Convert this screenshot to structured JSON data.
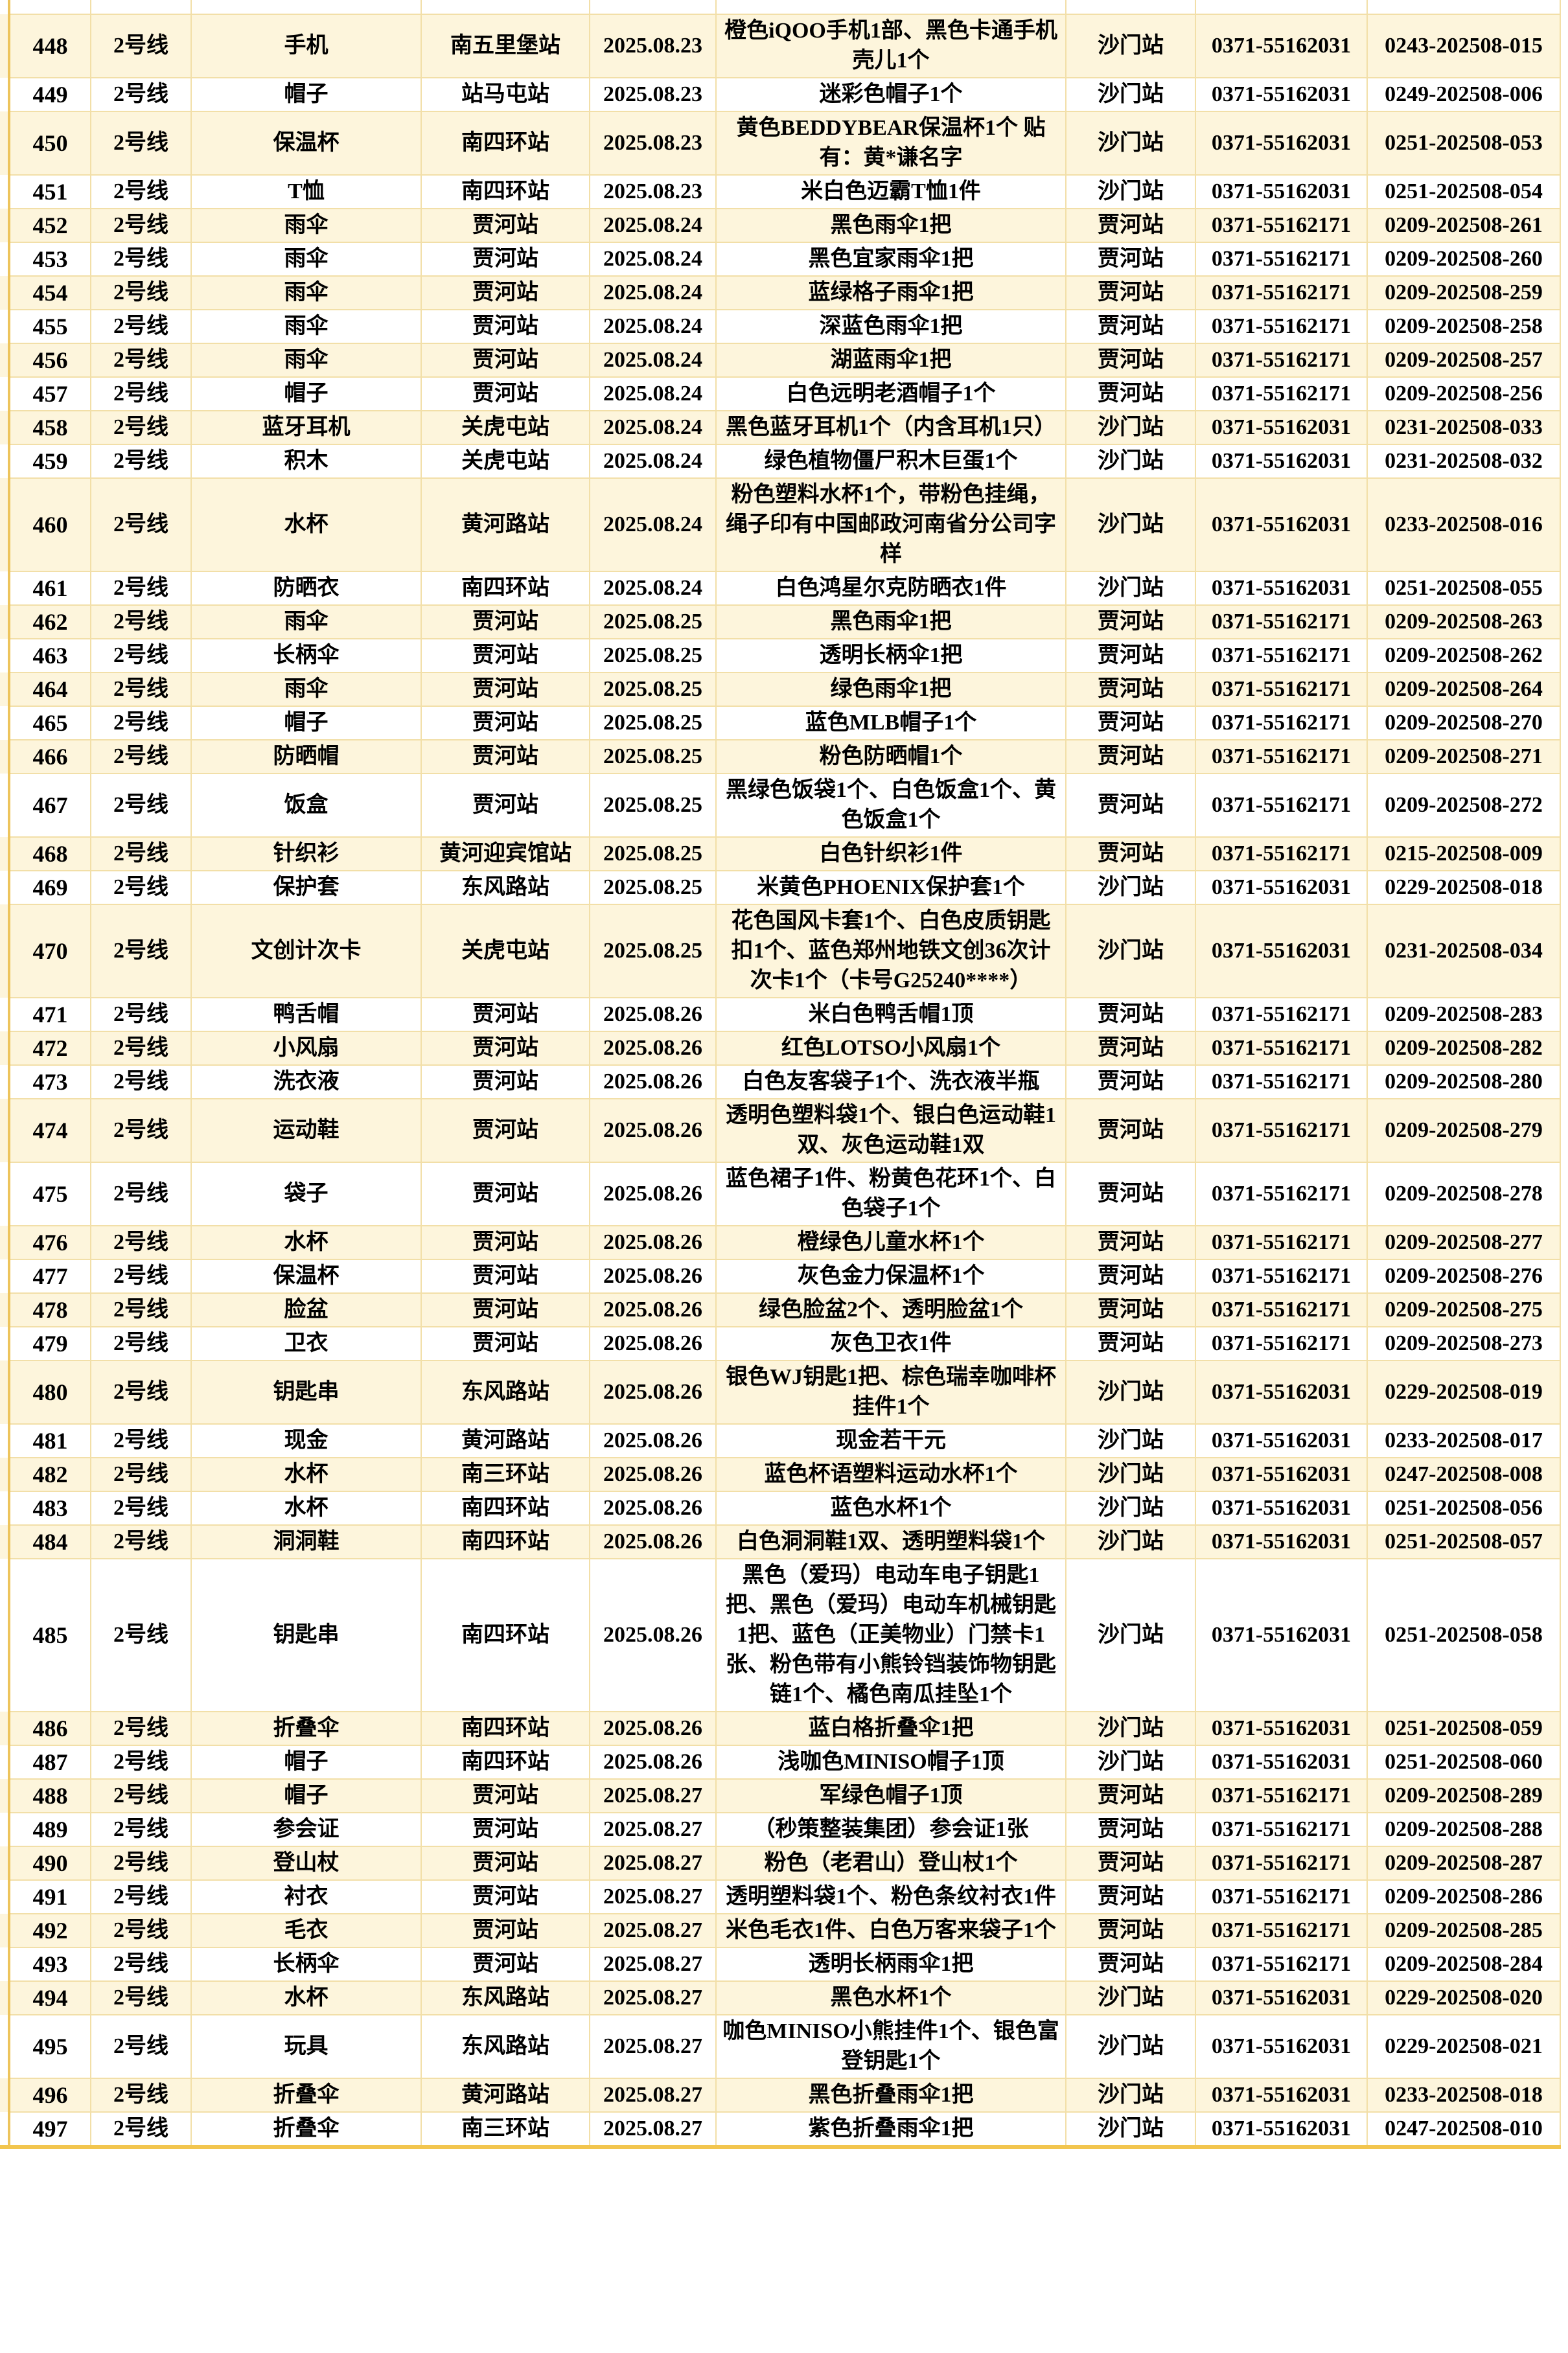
{
  "table": {
    "line_label": "2号线",
    "colors": {
      "row_band": "#fdf5dc",
      "row_plain": "#ffffff",
      "grid_line": "#f2dfa8",
      "outer_gold": "#edc45c",
      "bottom_border": "#f2c54e"
    },
    "rows": [
      {
        "no": "448",
        "line": "2号线",
        "item": "手机",
        "station": "南五里堡站",
        "date": "2025.08.23",
        "desc": "橙色iQOO手机1部、黑色卡通手机壳儿1个",
        "storage": "沙门站",
        "phone": "0371-55162031",
        "id": "0243-202508-015"
      },
      {
        "no": "449",
        "line": "2号线",
        "item": "帽子",
        "station": "站马屯站",
        "date": "2025.08.23",
        "desc": "迷彩色帽子1个",
        "storage": "沙门站",
        "phone": "0371-55162031",
        "id": "0249-202508-006"
      },
      {
        "no": "450",
        "line": "2号线",
        "item": "保温杯",
        "station": "南四环站",
        "date": "2025.08.23",
        "desc": "黄色BEDDYBEAR保温杯1个 贴有：黄*谦名字",
        "storage": "沙门站",
        "phone": "0371-55162031",
        "id": "0251-202508-053"
      },
      {
        "no": "451",
        "line": "2号线",
        "item": "T恤",
        "station": "南四环站",
        "date": "2025.08.23",
        "desc": "米白色迈霸T恤1件",
        "storage": "沙门站",
        "phone": "0371-55162031",
        "id": "0251-202508-054"
      },
      {
        "no": "452",
        "line": "2号线",
        "item": "雨伞",
        "station": "贾河站",
        "date": "2025.08.24",
        "desc": "黑色雨伞1把",
        "storage": "贾河站",
        "phone": "0371-55162171",
        "id": "0209-202508-261"
      },
      {
        "no": "453",
        "line": "2号线",
        "item": "雨伞",
        "station": "贾河站",
        "date": "2025.08.24",
        "desc": "黑色宜家雨伞1把",
        "storage": "贾河站",
        "phone": "0371-55162171",
        "id": "0209-202508-260"
      },
      {
        "no": "454",
        "line": "2号线",
        "item": "雨伞",
        "station": "贾河站",
        "date": "2025.08.24",
        "desc": "蓝绿格子雨伞1把",
        "storage": "贾河站",
        "phone": "0371-55162171",
        "id": "0209-202508-259"
      },
      {
        "no": "455",
        "line": "2号线",
        "item": "雨伞",
        "station": "贾河站",
        "date": "2025.08.24",
        "desc": "深蓝色雨伞1把",
        "storage": "贾河站",
        "phone": "0371-55162171",
        "id": "0209-202508-258"
      },
      {
        "no": "456",
        "line": "2号线",
        "item": "雨伞",
        "station": "贾河站",
        "date": "2025.08.24",
        "desc": "湖蓝雨伞1把",
        "storage": "贾河站",
        "phone": "0371-55162171",
        "id": "0209-202508-257"
      },
      {
        "no": "457",
        "line": "2号线",
        "item": "帽子",
        "station": "贾河站",
        "date": "2025.08.24",
        "desc": "白色远明老酒帽子1个",
        "storage": "贾河站",
        "phone": "0371-55162171",
        "id": "0209-202508-256"
      },
      {
        "no": "458",
        "line": "2号线",
        "item": "蓝牙耳机",
        "station": "关虎屯站",
        "date": "2025.08.24",
        "desc": "黑色蓝牙耳机1个（内含耳机1只）",
        "storage": "沙门站",
        "phone": "0371-55162031",
        "id": "0231-202508-033"
      },
      {
        "no": "459",
        "line": "2号线",
        "item": "积木",
        "station": "关虎屯站",
        "date": "2025.08.24",
        "desc": "绿色植物僵尸积木巨蛋1个",
        "storage": "沙门站",
        "phone": "0371-55162031",
        "id": "0231-202508-032"
      },
      {
        "no": "460",
        "line": "2号线",
        "item": "水杯",
        "station": "黄河路站",
        "date": "2025.08.24",
        "desc": "粉色塑料水杯1个，带粉色挂绳，绳子印有中国邮政河南省分公司字样",
        "storage": "沙门站",
        "phone": "0371-55162031",
        "id": "0233-202508-016"
      },
      {
        "no": "461",
        "line": "2号线",
        "item": "防晒衣",
        "station": "南四环站",
        "date": "2025.08.24",
        "desc": "白色鸿星尔克防晒衣1件",
        "storage": "沙门站",
        "phone": "0371-55162031",
        "id": "0251-202508-055"
      },
      {
        "no": "462",
        "line": "2号线",
        "item": "雨伞",
        "station": "贾河站",
        "date": "2025.08.25",
        "desc": "黑色雨伞1把",
        "storage": "贾河站",
        "phone": "0371-55162171",
        "id": "0209-202508-263"
      },
      {
        "no": "463",
        "line": "2号线",
        "item": "长柄伞",
        "station": "贾河站",
        "date": "2025.08.25",
        "desc": "透明长柄伞1把",
        "storage": "贾河站",
        "phone": "0371-55162171",
        "id": "0209-202508-262"
      },
      {
        "no": "464",
        "line": "2号线",
        "item": "雨伞",
        "station": "贾河站",
        "date": "2025.08.25",
        "desc": "绿色雨伞1把",
        "storage": "贾河站",
        "phone": "0371-55162171",
        "id": "0209-202508-264"
      },
      {
        "no": "465",
        "line": "2号线",
        "item": "帽子",
        "station": "贾河站",
        "date": "2025.08.25",
        "desc": "蓝色MLB帽子1个",
        "storage": "贾河站",
        "phone": "0371-55162171",
        "id": "0209-202508-270"
      },
      {
        "no": "466",
        "line": "2号线",
        "item": "防晒帽",
        "station": "贾河站",
        "date": "2025.08.25",
        "desc": "粉色防晒帽1个",
        "storage": "贾河站",
        "phone": "0371-55162171",
        "id": "0209-202508-271"
      },
      {
        "no": "467",
        "line": "2号线",
        "item": "饭盒",
        "station": "贾河站",
        "date": "2025.08.25",
        "desc": "黑绿色饭袋1个、白色饭盒1个、黄色饭盒1个",
        "storage": "贾河站",
        "phone": "0371-55162171",
        "id": "0209-202508-272"
      },
      {
        "no": "468",
        "line": "2号线",
        "item": "针织衫",
        "station": "黄河迎宾馆站",
        "date": "2025.08.25",
        "desc": "白色针织衫1件",
        "storage": "贾河站",
        "phone": "0371-55162171",
        "id": "0215-202508-009"
      },
      {
        "no": "469",
        "line": "2号线",
        "item": "保护套",
        "station": "东风路站",
        "date": "2025.08.25",
        "desc": "米黄色PHOENIX保护套1个",
        "storage": "沙门站",
        "phone": "0371-55162031",
        "id": "0229-202508-018"
      },
      {
        "no": "470",
        "line": "2号线",
        "item": "文创计次卡",
        "station": "关虎屯站",
        "date": "2025.08.25",
        "desc": "花色国风卡套1个、白色皮质钥匙扣1个、蓝色郑州地铁文创36次计次卡1个（卡号G25240****）",
        "storage": "沙门站",
        "phone": "0371-55162031",
        "id": "0231-202508-034"
      },
      {
        "no": "471",
        "line": "2号线",
        "item": "鸭舌帽",
        "station": "贾河站",
        "date": "2025.08.26",
        "desc": "米白色鸭舌帽1顶",
        "storage": "贾河站",
        "phone": "0371-55162171",
        "id": "0209-202508-283"
      },
      {
        "no": "472",
        "line": "2号线",
        "item": "小风扇",
        "station": "贾河站",
        "date": "2025.08.26",
        "desc": "红色LOTSO小风扇1个",
        "storage": "贾河站",
        "phone": "0371-55162171",
        "id": "0209-202508-282"
      },
      {
        "no": "473",
        "line": "2号线",
        "item": "洗衣液",
        "station": "贾河站",
        "date": "2025.08.26",
        "desc": "白色友客袋子1个、洗衣液半瓶",
        "storage": "贾河站",
        "phone": "0371-55162171",
        "id": "0209-202508-280"
      },
      {
        "no": "474",
        "line": "2号线",
        "item": "运动鞋",
        "station": "贾河站",
        "date": "2025.08.26",
        "desc": "透明色塑料袋1个、银白色运动鞋1双、灰色运动鞋1双",
        "storage": "贾河站",
        "phone": "0371-55162171",
        "id": "0209-202508-279"
      },
      {
        "no": "475",
        "line": "2号线",
        "item": "袋子",
        "station": "贾河站",
        "date": "2025.08.26",
        "desc": "蓝色裙子1件、粉黄色花环1个、白色袋子1个",
        "storage": "贾河站",
        "phone": "0371-55162171",
        "id": "0209-202508-278"
      },
      {
        "no": "476",
        "line": "2号线",
        "item": "水杯",
        "station": "贾河站",
        "date": "2025.08.26",
        "desc": "橙绿色儿童水杯1个",
        "storage": "贾河站",
        "phone": "0371-55162171",
        "id": "0209-202508-277"
      },
      {
        "no": "477",
        "line": "2号线",
        "item": "保温杯",
        "station": "贾河站",
        "date": "2025.08.26",
        "desc": "灰色金力保温杯1个",
        "storage": "贾河站",
        "phone": "0371-55162171",
        "id": "0209-202508-276"
      },
      {
        "no": "478",
        "line": "2号线",
        "item": "脸盆",
        "station": "贾河站",
        "date": "2025.08.26",
        "desc": "绿色脸盆2个、透明脸盆1个",
        "storage": "贾河站",
        "phone": "0371-55162171",
        "id": "0209-202508-275"
      },
      {
        "no": "479",
        "line": "2号线",
        "item": "卫衣",
        "station": "贾河站",
        "date": "2025.08.26",
        "desc": "灰色卫衣1件",
        "storage": "贾河站",
        "phone": "0371-55162171",
        "id": "0209-202508-273"
      },
      {
        "no": "480",
        "line": "2号线",
        "item": "钥匙串",
        "station": "东风路站",
        "date": "2025.08.26",
        "desc": "银色WJ钥匙1把、棕色瑞幸咖啡杯挂件1个",
        "storage": "沙门站",
        "phone": "0371-55162031",
        "id": "0229-202508-019"
      },
      {
        "no": "481",
        "line": "2号线",
        "item": "现金",
        "station": "黄河路站",
        "date": "2025.08.26",
        "desc": "现金若干元",
        "storage": "沙门站",
        "phone": "0371-55162031",
        "id": "0233-202508-017"
      },
      {
        "no": "482",
        "line": "2号线",
        "item": "水杯",
        "station": "南三环站",
        "date": "2025.08.26",
        "desc": "蓝色杯语塑料运动水杯1个",
        "storage": "沙门站",
        "phone": "0371-55162031",
        "id": "0247-202508-008"
      },
      {
        "no": "483",
        "line": "2号线",
        "item": "水杯",
        "station": "南四环站",
        "date": "2025.08.26",
        "desc": "蓝色水杯1个",
        "storage": "沙门站",
        "phone": "0371-55162031",
        "id": "0251-202508-056"
      },
      {
        "no": "484",
        "line": "2号线",
        "item": "洞洞鞋",
        "station": "南四环站",
        "date": "2025.08.26",
        "desc": "白色洞洞鞋1双、透明塑料袋1个",
        "storage": "沙门站",
        "phone": "0371-55162031",
        "id": "0251-202508-057"
      },
      {
        "no": "485",
        "line": "2号线",
        "item": "钥匙串",
        "station": "南四环站",
        "date": "2025.08.26",
        "desc": "黑色（爱玛）电动车电子钥匙1把、黑色（爱玛）电动车机械钥匙1把、蓝色（正美物业）门禁卡1张、粉色带有小熊铃铛装饰物钥匙链1个、橘色南瓜挂坠1个",
        "storage": "沙门站",
        "phone": "0371-55162031",
        "id": "0251-202508-058"
      },
      {
        "no": "486",
        "line": "2号线",
        "item": "折叠伞",
        "station": "南四环站",
        "date": "2025.08.26",
        "desc": "蓝白格折叠伞1把",
        "storage": "沙门站",
        "phone": "0371-55162031",
        "id": "0251-202508-059"
      },
      {
        "no": "487",
        "line": "2号线",
        "item": "帽子",
        "station": "南四环站",
        "date": "2025.08.26",
        "desc": "浅咖色MINISO帽子1顶",
        "storage": "沙门站",
        "phone": "0371-55162031",
        "id": "0251-202508-060"
      },
      {
        "no": "488",
        "line": "2号线",
        "item": "帽子",
        "station": "贾河站",
        "date": "2025.08.27",
        "desc": "军绿色帽子1顶",
        "storage": "贾河站",
        "phone": "0371-55162171",
        "id": "0209-202508-289"
      },
      {
        "no": "489",
        "line": "2号线",
        "item": "参会证",
        "station": "贾河站",
        "date": "2025.08.27",
        "desc": "（秒策整装集团）参会证1张",
        "storage": "贾河站",
        "phone": "0371-55162171",
        "id": "0209-202508-288"
      },
      {
        "no": "490",
        "line": "2号线",
        "item": "登山杖",
        "station": "贾河站",
        "date": "2025.08.27",
        "desc": "粉色（老君山）登山杖1个",
        "storage": "贾河站",
        "phone": "0371-55162171",
        "id": "0209-202508-287"
      },
      {
        "no": "491",
        "line": "2号线",
        "item": "衬衣",
        "station": "贾河站",
        "date": "2025.08.27",
        "desc": "透明塑料袋1个、粉色条纹衬衣1件",
        "storage": "贾河站",
        "phone": "0371-55162171",
        "id": "0209-202508-286"
      },
      {
        "no": "492",
        "line": "2号线",
        "item": "毛衣",
        "station": "贾河站",
        "date": "2025.08.27",
        "desc": "米色毛衣1件、白色万客来袋子1个",
        "storage": "贾河站",
        "phone": "0371-55162171",
        "id": "0209-202508-285"
      },
      {
        "no": "493",
        "line": "2号线",
        "item": "长柄伞",
        "station": "贾河站",
        "date": "2025.08.27",
        "desc": "透明长柄雨伞1把",
        "storage": "贾河站",
        "phone": "0371-55162171",
        "id": "0209-202508-284"
      },
      {
        "no": "494",
        "line": "2号线",
        "item": "水杯",
        "station": "东风路站",
        "date": "2025.08.27",
        "desc": "黑色水杯1个",
        "storage": "沙门站",
        "phone": "0371-55162031",
        "id": "0229-202508-020"
      },
      {
        "no": "495",
        "line": "2号线",
        "item": "玩具",
        "station": "东风路站",
        "date": "2025.08.27",
        "desc": "咖色MINISO小熊挂件1个、银色富登钥匙1个",
        "storage": "沙门站",
        "phone": "0371-55162031",
        "id": "0229-202508-021"
      },
      {
        "no": "496",
        "line": "2号线",
        "item": "折叠伞",
        "station": "黄河路站",
        "date": "2025.08.27",
        "desc": "黑色折叠雨伞1把",
        "storage": "沙门站",
        "phone": "0371-55162031",
        "id": "0233-202508-018"
      },
      {
        "no": "497",
        "line": "2号线",
        "item": "折叠伞",
        "station": "南三环站",
        "date": "2025.08.27",
        "desc": "紫色折叠雨伞1把",
        "storage": "沙门站",
        "phone": "0371-55162031",
        "id": "0247-202508-010"
      }
    ]
  }
}
